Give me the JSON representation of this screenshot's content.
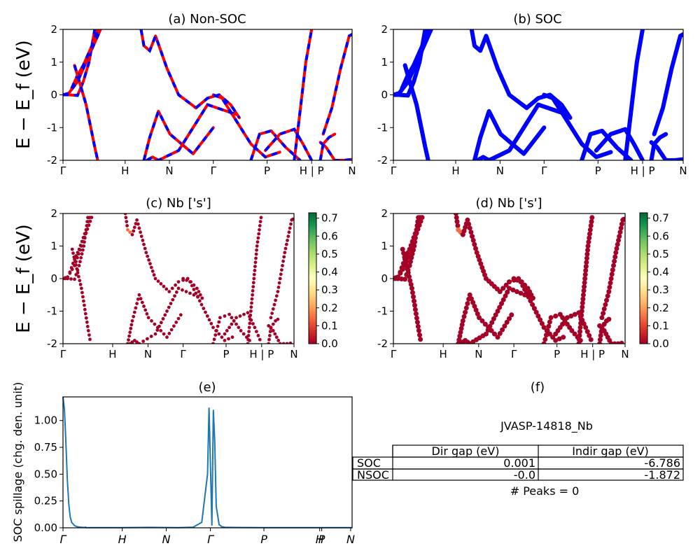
{
  "ylabel_energy": "E − E_f (eV)",
  "ylabel_spillage": "SOC spillage (chg. den. unit)",
  "kpath_labels": [
    "Γ",
    "H",
    "N",
    "Γ",
    "P",
    "H | P",
    "N"
  ],
  "spillage_ticks": [
    "Γ",
    "H",
    "N",
    "Γ",
    "P",
    "H",
    "P",
    "N"
  ],
  "panels": {
    "a": {
      "title": "(a) Non-SOC"
    },
    "b": {
      "title": "(b) SOC"
    },
    "c": {
      "title": "(c)  Nb ['s']"
    },
    "d": {
      "title": "(d) Nb ['s']"
    },
    "e": {
      "title": "(e)"
    },
    "f": {
      "title": "(f)"
    }
  },
  "colors": {
    "band_blue": "#0000ff",
    "band_red": "#ff0000",
    "spillage_line": "#1f77b4",
    "colormap": "RdYlGn"
  },
  "table": {
    "name": "JVASP-14818_Nb",
    "headers": [
      "",
      "Dir gap (eV)",
      "Indir gap (eV)"
    ],
    "rows": [
      [
        "SOC",
        "0.001",
        "-6.786"
      ],
      [
        "NSOC",
        "-0.0",
        "-1.872"
      ]
    ],
    "peaks": "# Peaks = 0"
  },
  "chart_data": [
    {
      "panel": "a",
      "type": "line",
      "title": "(a) Non-SOC",
      "ylabel": "E − E_f (eV)",
      "ylim": [
        -2,
        2
      ],
      "yticks": [
        -2,
        -1,
        0,
        1,
        2
      ],
      "xticks": [
        "Γ",
        "H",
        "N",
        "Γ",
        "P",
        "H | P",
        "N"
      ],
      "series": [
        {
          "x": [
            0,
            0.02,
            0.05,
            0.08,
            0.1,
            0.13
          ],
          "y": [
            0,
            0.05,
            0.4,
            1.0,
            1.4,
            2
          ]
        },
        {
          "x": [
            0,
            0.02,
            0.05,
            0.07,
            0.09,
            0.11
          ],
          "y": [
            0,
            0.0,
            -0.02,
            0.4,
            1.0,
            2
          ]
        },
        {
          "x": [
            0.03,
            0.05,
            0.07,
            0.1,
            0.12
          ],
          "y": [
            0.2,
            0.6,
            0.9,
            1.5,
            2
          ]
        },
        {
          "x": [
            0.04,
            0.06,
            0.08,
            0.11,
            0.12
          ],
          "y": [
            0.9,
            0.3,
            -0.3,
            -1.6,
            -2
          ]
        },
        {
          "x": [
            0.27,
            0.28,
            0.3,
            0.32,
            0.36,
            0.4,
            0.46
          ],
          "y": [
            2,
            1.5,
            1.35,
            1.8,
            0.8,
            0.0,
            -0.4
          ]
        },
        {
          "x": [
            0.46,
            0.5,
            0.54,
            0.58,
            0.61
          ],
          "y": [
            -0.4,
            -0.1,
            0.0,
            -0.3,
            -0.7
          ]
        },
        {
          "x": [
            0.28,
            0.3,
            0.33,
            0.37,
            0.45,
            0.52
          ],
          "y": [
            -2,
            -1.3,
            -0.5,
            -1.2,
            -1.8,
            -1.0
          ]
        },
        {
          "x": [
            0.29,
            0.31,
            0.33,
            0.4,
            0.5,
            0.6
          ],
          "y": [
            -2,
            -1.9,
            -2,
            -1.7,
            -0.3,
            -0.6
          ]
        },
        {
          "x": [
            0.52,
            0.55,
            0.6,
            0.65,
            0.7,
            0.75
          ],
          "y": [
            0.0,
            -0.1,
            -0.8,
            -1.5,
            -1.9,
            -1.75
          ]
        },
        {
          "x": [
            0.65,
            0.68,
            0.72,
            0.77,
            0.82
          ],
          "y": [
            -2,
            -1.2,
            -1.1,
            -1.6,
            -2
          ]
        },
        {
          "x": [
            0.7,
            0.75,
            0.8,
            0.83,
            0.86
          ],
          "y": [
            -1.7,
            -1.2,
            -1.05,
            -1.5,
            -2
          ]
        },
        {
          "x": [
            0.8,
            0.82,
            0.84,
            0.86
          ],
          "y": [
            -2,
            -0.5,
            1.0,
            2
          ]
        },
        {
          "x": [
            0.89,
            0.91,
            0.94,
            0.97,
            1.0
          ],
          "y": [
            -1.45,
            -1.6,
            -2,
            -2.0,
            -1.97
          ]
        },
        {
          "x": [
            0.89,
            0.9,
            0.92,
            0.94
          ],
          "y": [
            -2,
            -1.5,
            -1.3,
            -1.2
          ]
        },
        {
          "x": [
            0.9,
            0.93,
            0.96,
            0.99,
            1.0
          ],
          "y": [
            -1.2,
            -0.4,
            0.8,
            1.8,
            1.85
          ]
        }
      ]
    },
    {
      "panel": "b",
      "type": "line",
      "title": "(b) SOC",
      "ylim": [
        -2,
        2
      ],
      "yticks": [
        -2,
        -1,
        0,
        1,
        2
      ],
      "xticks": [
        "Γ",
        "H",
        "N",
        "Γ",
        "P",
        "H | P",
        "N"
      ]
    },
    {
      "panel": "c",
      "type": "scatter",
      "title": "(c)  Nb ['s']",
      "ylabel": "E − E_f (eV)",
      "ylim": [
        -2,
        2
      ],
      "colorbar_ticks": [
        0.0,
        0.1,
        0.2,
        0.3,
        0.4,
        0.5,
        0.6,
        0.7
      ],
      "colorbar_range": [
        0,
        0.73
      ],
      "xticks": [
        "Γ",
        "H",
        "N",
        "Γ",
        "P",
        "H | P",
        "N"
      ]
    },
    {
      "panel": "d",
      "type": "scatter",
      "title": "(d) Nb ['s']",
      "ylim": [
        -2,
        2
      ],
      "colorbar_ticks": [
        0.0,
        0.1,
        0.2,
        0.3,
        0.4,
        0.5,
        0.6,
        0.7
      ],
      "colorbar_range": [
        0,
        0.73
      ],
      "xticks": [
        "Γ",
        "H",
        "N",
        "Γ",
        "P",
        "H | P",
        "N"
      ]
    },
    {
      "panel": "e",
      "type": "line",
      "title": "(e)",
      "ylabel": "SOC spillage (chg. den. unit)",
      "ylim": [
        0,
        1.22
      ],
      "yticks": [
        0.0,
        0.25,
        0.5,
        0.75,
        1.0
      ],
      "xticks": [
        "Γ",
        "H",
        "N",
        "Γ",
        "P",
        "H",
        "P",
        "N"
      ],
      "series": [
        {
          "name": "",
          "x": [
            0,
            0.005,
            0.01,
            0.015,
            0.02,
            0.025,
            0.03,
            0.04,
            0.05,
            0.06,
            0.07,
            0.08,
            0.075,
            0.08,
            0.1,
            0.2,
            0.3,
            0.4,
            0.45,
            0.48,
            0.5,
            0.505,
            0.51,
            0.515,
            0.52,
            0.525,
            0.53,
            0.54,
            0.55,
            0.56,
            0.6,
            0.7,
            0.8,
            0.9,
            1.0
          ],
          "y": [
            1.22,
            1.1,
            0.8,
            0.45,
            0.22,
            0.1,
            0.05,
            0.02,
            0.01,
            0.006,
            0.004,
            0.003,
            0.008,
            0.002,
            0.002,
            0.002,
            0.004,
            0.002,
            0.006,
            0.05,
            0.5,
            1.12,
            0.6,
            0.02,
            1.1,
            0.8,
            0.2,
            0.03,
            0.01,
            0.005,
            0.003,
            0.002,
            0.002,
            0.002,
            0.001
          ]
        }
      ]
    }
  ]
}
